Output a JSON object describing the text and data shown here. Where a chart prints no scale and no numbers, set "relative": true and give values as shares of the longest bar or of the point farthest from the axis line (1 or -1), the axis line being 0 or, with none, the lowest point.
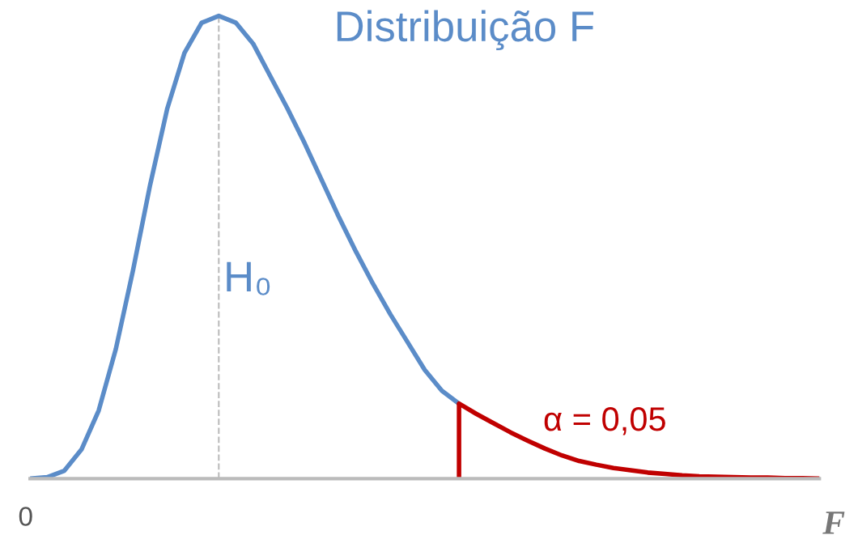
{
  "chart_data": {
    "type": "line",
    "relative": true,
    "xlabel": "F",
    "annotations": [
      "Distribuição F",
      "H₀",
      "α = 0,05",
      "0"
    ],
    "categories": [
      null,
      null,
      null,
      null,
      null,
      null,
      null,
      null,
      null,
      null,
      null,
      null,
      null,
      null,
      null,
      null,
      null,
      null,
      null,
      null,
      null,
      null,
      null,
      null,
      null,
      null,
      null,
      null,
      null,
      null,
      null,
      null,
      null,
      null,
      null,
      null,
      null,
      null,
      null,
      null,
      null,
      null,
      null,
      null,
      null,
      null,
      null
    ],
    "series": [
      {
        "color": "#5b8cc8",
        "values": [
          0,
          0.003,
          0.017,
          0.063,
          0.147,
          0.28,
          0.45,
          0.635,
          0.8,
          0.92,
          0.985,
          1,
          0.985,
          0.94,
          0.87,
          0.8,
          0.725,
          0.645,
          0.565,
          0.49,
          0.42,
          0.355,
          0.295,
          0.235,
          0.19,
          0.162,
          null,
          null,
          null,
          null,
          null,
          null,
          null,
          null,
          null,
          null,
          null,
          null,
          null,
          null,
          null,
          null,
          null,
          null,
          null,
          null,
          null
        ]
      },
      {
        "color": "#c00000",
        "values": [
          null,
          null,
          null,
          null,
          null,
          null,
          null,
          null,
          null,
          null,
          null,
          null,
          null,
          null,
          null,
          null,
          null,
          null,
          null,
          null,
          null,
          null,
          null,
          null,
          null,
          0.162,
          0.14,
          0.12,
          0.1,
          0.082,
          0.065,
          0.05,
          0.038,
          0.03,
          0.023,
          0.018,
          0.013,
          0.01,
          0.007,
          0.005,
          0.004,
          0.003,
          0.002,
          0.002,
          0.001,
          0.001,
          0
        ]
      }
    ]
  }
}
